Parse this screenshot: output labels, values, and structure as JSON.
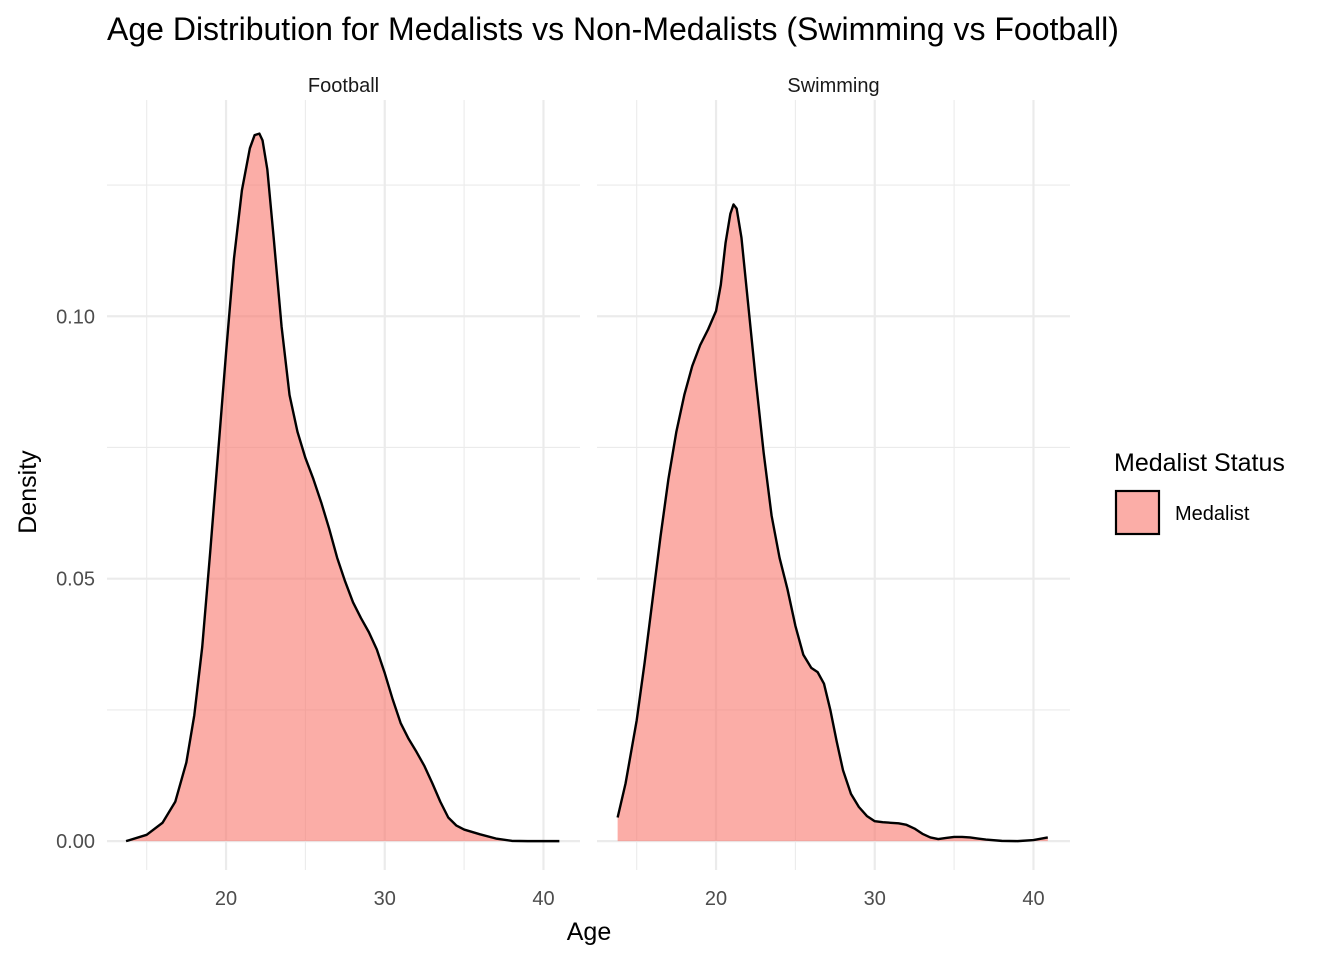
{
  "chart_data": {
    "type": "area",
    "title": "Age Distribution for Medalists vs Non-Medalists (Swimming vs Football)",
    "xlabel": "Age",
    "ylabel": "Density",
    "legend": {
      "title": "Medalist Status",
      "position": "right",
      "entries": [
        {
          "label": "Medalist",
          "fill": "#F8766D",
          "fill_opacity": 0.6,
          "stroke": "#000000"
        }
      ]
    },
    "grid": true,
    "x_ticks": [
      20,
      30,
      40
    ],
    "y_ticks": [
      0.0,
      0.05,
      0.1
    ],
    "y_tick_labels": [
      "0.00",
      "0.05",
      "0.10"
    ],
    "xlim": [
      12.5,
      42.3
    ],
    "ylim": [
      -0.0055,
      0.1412
    ],
    "panels": [
      {
        "facet": "Football",
        "series": [
          {
            "name": "Medalist",
            "x": [
              13.7,
              15.0,
              16.0,
              16.8,
              17.5,
              18.0,
              18.5,
              19.0,
              19.5,
              20.0,
              20.5,
              21.0,
              21.5,
              21.8,
              22.1,
              22.3,
              22.6,
              23.0,
              23.5,
              24.0,
              24.5,
              25.0,
              25.5,
              26.0,
              26.5,
              27.0,
              27.5,
              28.0,
              28.5,
              29.0,
              29.5,
              30.0,
              30.5,
              31.0,
              31.5,
              32.0,
              32.5,
              33.0,
              33.5,
              34.0,
              34.5,
              35.0,
              36.0,
              37.0,
              38.0,
              39.0,
              40.0,
              41.0
            ],
            "y": [
              0.0,
              0.0012,
              0.0035,
              0.0075,
              0.015,
              0.024,
              0.037,
              0.055,
              0.074,
              0.093,
              0.111,
              0.124,
              0.132,
              0.1345,
              0.1348,
              0.1335,
              0.128,
              0.115,
              0.098,
              0.085,
              0.078,
              0.073,
              0.069,
              0.0645,
              0.0595,
              0.054,
              0.0495,
              0.0455,
              0.0425,
              0.0398,
              0.0365,
              0.032,
              0.027,
              0.0225,
              0.0195,
              0.017,
              0.0143,
              0.011,
              0.0075,
              0.0045,
              0.003,
              0.0022,
              0.0013,
              0.0005,
              5e-05,
              0.0,
              0.0,
              0.0
            ]
          }
        ]
      },
      {
        "facet": "Swimming",
        "series": [
          {
            "name": "Medalist",
            "x": [
              13.8,
              14.3,
              15.0,
              15.5,
              16.0,
              16.5,
              17.0,
              17.5,
              18.0,
              18.5,
              19.0,
              19.5,
              20.0,
              20.3,
              20.6,
              20.9,
              21.1,
              21.3,
              21.6,
              22.0,
              22.5,
              23.0,
              23.5,
              24.0,
              24.5,
              25.0,
              25.5,
              26.0,
              26.4,
              26.8,
              27.2,
              27.6,
              28.0,
              28.5,
              29.0,
              29.5,
              30.0,
              30.5,
              31.0,
              31.5,
              32.0,
              32.5,
              33.0,
              33.5,
              34.0,
              34.5,
              35.0,
              35.5,
              36.0,
              36.5,
              37.0,
              38.0,
              39.0,
              40.0,
              40.9
            ],
            "y": [
              0.0045,
              0.011,
              0.023,
              0.034,
              0.046,
              0.058,
              0.069,
              0.078,
              0.085,
              0.0905,
              0.0945,
              0.0975,
              0.101,
              0.106,
              0.114,
              0.1195,
              0.1213,
              0.1205,
              0.115,
              0.103,
              0.088,
              0.074,
              0.062,
              0.054,
              0.048,
              0.041,
              0.0355,
              0.033,
              0.0322,
              0.03,
              0.025,
              0.019,
              0.0135,
              0.009,
              0.0065,
              0.0048,
              0.0038,
              0.0036,
              0.0035,
              0.0034,
              0.0031,
              0.0024,
              0.0014,
              0.0007,
              0.0004,
              0.0006,
              0.0008,
              0.0008,
              0.0007,
              0.0005,
              0.0003,
              5e-05,
              0.0,
              0.0002,
              0.0007
            ]
          }
        ]
      }
    ]
  }
}
